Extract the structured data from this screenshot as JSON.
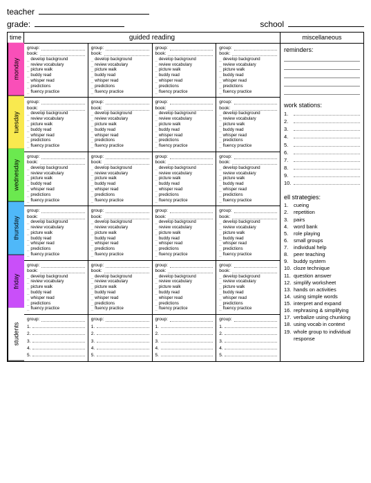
{
  "header": {
    "teacher_label": "teacher",
    "grade_label": "grade:",
    "school_label": "school"
  },
  "columns": {
    "time_label": "time",
    "guided_label": "guided reading",
    "misc_label": "miscellaneous"
  },
  "days": [
    {
      "label": "monday",
      "color": "#f94fb8"
    },
    {
      "label": "tuesday",
      "color": "#f9e94f"
    },
    {
      "label": "wednesday",
      "color": "#6be94f"
    },
    {
      "label": "thursday",
      "color": "#4fb8f9"
    },
    {
      "label": "friday",
      "color": "#c94ff9"
    },
    {
      "label": "students",
      "color": "#ffffff"
    }
  ],
  "cell": {
    "group_label": "group:",
    "book_label": "book:",
    "activities": [
      "develop background",
      "review vocabulary",
      "picture walk",
      "buddy read",
      "whisper read",
      "predictions",
      "fluency practice"
    ],
    "student_numbers": [
      "1.",
      "2.",
      "3.",
      "4.",
      "5."
    ]
  },
  "sidebar": {
    "reminders_title": "reminders:",
    "reminder_lines": 5,
    "workstations_title": "work stations:",
    "workstation_nums": [
      "1.",
      "2.",
      "3.",
      "4.",
      "5.",
      "6.",
      "7.",
      "8.",
      "9.",
      "10."
    ],
    "ell_title": "ell strategies:",
    "ell_items": [
      "cueing",
      "repetition",
      "pairs",
      "word bank",
      "role playing",
      "small groups",
      "individual help",
      "peer teaching",
      "buddy system",
      "cloze technique",
      "question answer",
      "simplify worksheet",
      "hands on activities",
      "using simple words",
      "interpret and expand",
      "rephrasing & simplifying",
      "verbalize using chunking",
      "using vocab in context",
      "whole group to individual response"
    ]
  }
}
